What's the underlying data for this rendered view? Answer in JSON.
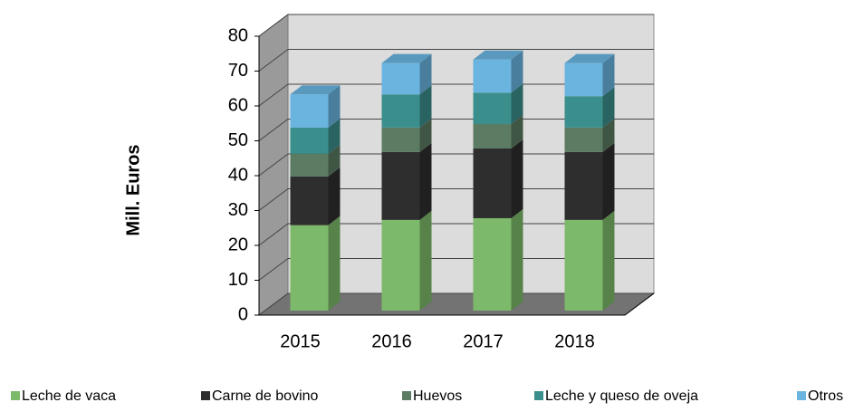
{
  "chart_data": {
    "type": "bar",
    "stacked": true,
    "y_label": "Mill.  Euros",
    "categories": [
      "2015",
      "2016",
      "2017",
      "2018"
    ],
    "series": [
      {
        "name": "Leche de vaca",
        "color": "#7cb96a",
        "values": [
          24.5,
          26,
          26.5,
          26
        ]
      },
      {
        "name": "Carne de bovino",
        "color": "#2e2e2e",
        "values": [
          14,
          19.5,
          20,
          19.5
        ]
      },
      {
        "name": "Huevos",
        "color": "#5b7b63",
        "values": [
          6.5,
          7,
          7,
          7
        ]
      },
      {
        "name": "Leche y queso de oveja",
        "color": "#3a8f8c",
        "values": [
          7.5,
          9.5,
          9,
          9
        ]
      },
      {
        "name": "Otros",
        "color": "#6ab4e0",
        "values": [
          9.5,
          9,
          9.5,
          9.5
        ]
      }
    ],
    "ylim": [
      0,
      80
    ],
    "yticks": [
      0,
      10,
      20,
      30,
      40,
      50,
      60,
      70,
      80
    ],
    "grid": true
  }
}
